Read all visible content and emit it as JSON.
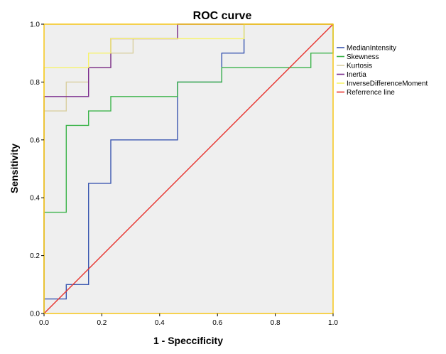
{
  "chart_data": {
    "type": "line",
    "title": "ROC curve",
    "xlabel": "1 - Speccificity",
    "ylabel": "Sensitivity",
    "xlim": [
      0,
      1
    ],
    "ylim": [
      0,
      1
    ],
    "x_ticks": [
      "0.0",
      "0.2",
      "0.4",
      "0.6",
      "0.8",
      "1.0"
    ],
    "y_ticks": [
      "0.0",
      "0.2",
      "0.4",
      "0.6",
      "0.8",
      "1.0"
    ],
    "grid": false,
    "legend_position": "right",
    "plot_background": "#efefef",
    "frame_color": "#f5c518",
    "series": [
      {
        "name": "MedianIntensity",
        "color": "#3a56b0",
        "points": [
          [
            0,
            0
          ],
          [
            0,
            0.05
          ],
          [
            0.077,
            0.05
          ],
          [
            0.077,
            0.1
          ],
          [
            0.154,
            0.1
          ],
          [
            0.154,
            0.45
          ],
          [
            0.231,
            0.45
          ],
          [
            0.231,
            0.6
          ],
          [
            0.462,
            0.6
          ],
          [
            0.462,
            0.8
          ],
          [
            0.615,
            0.8
          ],
          [
            0.615,
            0.9
          ],
          [
            0.692,
            0.9
          ],
          [
            0.692,
            1.0
          ],
          [
            1.0,
            1.0
          ]
        ]
      },
      {
        "name": "Skewness",
        "color": "#3cb44b",
        "points": [
          [
            0,
            0
          ],
          [
            0,
            0.35
          ],
          [
            0.077,
            0.35
          ],
          [
            0.077,
            0.65
          ],
          [
            0.154,
            0.65
          ],
          [
            0.154,
            0.7
          ],
          [
            0.231,
            0.7
          ],
          [
            0.231,
            0.75
          ],
          [
            0.462,
            0.75
          ],
          [
            0.462,
            0.8
          ],
          [
            0.615,
            0.8
          ],
          [
            0.615,
            0.85
          ],
          [
            0.923,
            0.85
          ],
          [
            0.923,
            0.9
          ],
          [
            1.0,
            0.9
          ],
          [
            1.0,
            1.0
          ]
        ]
      },
      {
        "name": "Kurtosis",
        "color": "#d9cfa0",
        "points": [
          [
            0,
            0
          ],
          [
            0,
            0.7
          ],
          [
            0.077,
            0.7
          ],
          [
            0.077,
            0.8
          ],
          [
            0.154,
            0.8
          ],
          [
            0.154,
            0.85
          ],
          [
            0.231,
            0.85
          ],
          [
            0.231,
            0.9
          ],
          [
            0.308,
            0.9
          ],
          [
            0.308,
            0.95
          ],
          [
            0.462,
            0.95
          ],
          [
            0.462,
            1.0
          ],
          [
            1.0,
            1.0
          ]
        ]
      },
      {
        "name": "Inertia",
        "color": "#7b2c8e",
        "points": [
          [
            0,
            0
          ],
          [
            0,
            0.75
          ],
          [
            0.154,
            0.75
          ],
          [
            0.154,
            0.85
          ],
          [
            0.231,
            0.85
          ],
          [
            0.231,
            0.95
          ],
          [
            0.462,
            0.95
          ],
          [
            0.462,
            1.0
          ],
          [
            1.0,
            1.0
          ]
        ]
      },
      {
        "name": "InverseDifferenceMoment",
        "color": "#f7f36b",
        "points": [
          [
            0,
            0
          ],
          [
            0,
            0.85
          ],
          [
            0.154,
            0.85
          ],
          [
            0.154,
            0.9
          ],
          [
            0.231,
            0.9
          ],
          [
            0.231,
            0.95
          ],
          [
            0.692,
            0.95
          ],
          [
            0.692,
            1.0
          ],
          [
            1.0,
            1.0
          ]
        ]
      },
      {
        "name": "Referrence line",
        "color": "#e8332d",
        "points": [
          [
            0,
            0
          ],
          [
            1,
            1
          ]
        ]
      }
    ]
  }
}
